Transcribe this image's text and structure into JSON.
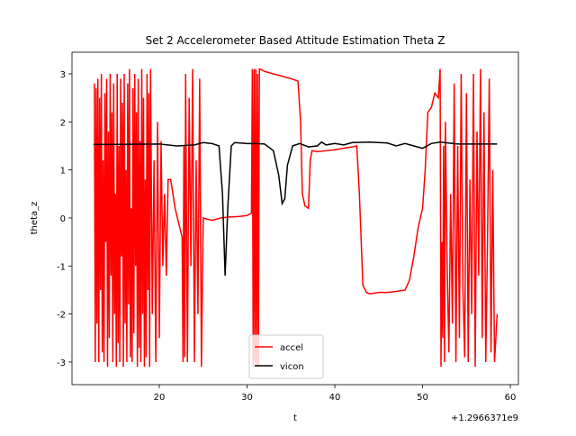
{
  "chart_data": {
    "type": "line",
    "title": "Set 2 Accelerometer Based Attitude Estimation Theta Z",
    "xlabel": "t",
    "ylabel": "theta_z",
    "x_offset_label": "+1.2966371e9",
    "xlim": [
      10.05,
      60.92
    ],
    "ylim": [
      -3.47,
      3.45
    ],
    "xticks": [
      20,
      30,
      40,
      50,
      60
    ],
    "yticks": [
      -3,
      -2,
      -1,
      0,
      1,
      2,
      3
    ],
    "legend": "lower center",
    "series": [
      {
        "name": "accel",
        "color": "#ff0000",
        "x": [
          12.6,
          12.7,
          12.8,
          12.9,
          13.0,
          13.1,
          13.2,
          13.3,
          13.4,
          13.5,
          13.6,
          13.7,
          13.8,
          13.9,
          14.0,
          14.1,
          14.2,
          14.3,
          14.4,
          14.5,
          14.6,
          14.7,
          14.8,
          14.9,
          15.0,
          15.1,
          15.2,
          15.3,
          15.4,
          15.5,
          15.6,
          15.7,
          15.8,
          15.9,
          16.0,
          16.1,
          16.2,
          16.3,
          16.4,
          16.5,
          16.6,
          16.7,
          16.8,
          16.9,
          17.0,
          17.1,
          17.2,
          17.3,
          17.4,
          17.5,
          17.6,
          17.7,
          17.8,
          17.9,
          18.0,
          18.1,
          18.2,
          18.3,
          18.4,
          18.5,
          18.6,
          18.7,
          18.8,
          18.9,
          19.0,
          19.2,
          19.4,
          19.6,
          19.8,
          20.0,
          20.2,
          20.4,
          20.6,
          20.8,
          21.0,
          21.3,
          21.8,
          22.2,
          22.6,
          22.7,
          22.8,
          22.9,
          23.0,
          23.2,
          23.4,
          23.6,
          23.8,
          24.0,
          24.2,
          24.4,
          24.6,
          24.8,
          25.0,
          26,
          27,
          28,
          29,
          30,
          30.5,
          30.6,
          30.7,
          30.8,
          30.9,
          31.0,
          31.1,
          31.2,
          31.3,
          31.4,
          31.5,
          32,
          33,
          34,
          35,
          35.8,
          36.1,
          36.3,
          36.6,
          37.0,
          37.2,
          37.4,
          38,
          39,
          40,
          41,
          42,
          42.5,
          42.8,
          43.2,
          43.6,
          44,
          45,
          46,
          47,
          48,
          48.5,
          49,
          49.5,
          50,
          50.3,
          50.6,
          51,
          51.4,
          51.8,
          52.0,
          52.1,
          52.2,
          52.3,
          52.4,
          52.5,
          52.6,
          52.8,
          53.0,
          53.2,
          53.4,
          53.6,
          53.8,
          54.0,
          54.2,
          54.4,
          54.6,
          54.8,
          55.0,
          55.2,
          55.4,
          55.6,
          55.8,
          56.0,
          56.2,
          56.4,
          56.6,
          56.8,
          57.0,
          57.2,
          57.4,
          57.6,
          57.8,
          58.0,
          58.2,
          58.5
        ],
        "values": [
          2.8,
          -3.0,
          2.7,
          -2.2,
          2.9,
          -3.0,
          2.5,
          -1.5,
          3.0,
          -2.8,
          1.2,
          -3.0,
          2.6,
          -0.5,
          2.9,
          -3.1,
          1.8,
          -2.5,
          3.0,
          -1.2,
          2.2,
          -3.0,
          2.8,
          -2.0,
          0.5,
          -3.1,
          3.0,
          -2.6,
          1.5,
          -3.0,
          2.9,
          -0.8,
          2.4,
          -3.1,
          3.0,
          -2.2,
          1.0,
          -3.0,
          2.8,
          -1.8,
          3.1,
          -2.9,
          0.2,
          -3.0,
          2.7,
          -2.4,
          3.0,
          -1.0,
          2.2,
          -3.1,
          2.9,
          -2.7,
          1.6,
          -3.0,
          3.1,
          -2.0,
          2.5,
          -3.1,
          0.8,
          -2.9,
          3.0,
          -1.5,
          2.6,
          -3.1,
          3.1,
          -2.0,
          1.2,
          -3.0,
          2.0,
          -2.5,
          1.6,
          -1.0,
          0.5,
          -1.2,
          0.8,
          0.8,
          0.2,
          -0.1,
          -0.4,
          -3.0,
          1.5,
          -2.9,
          3.0,
          -3.0,
          2.5,
          -1.0,
          3.1,
          -3.0,
          1.2,
          -2.0,
          2.9,
          -3.1,
          0.0,
          -0.05,
          0.0,
          0.02,
          0.03,
          0.05,
          0.1,
          3.1,
          -3.1,
          3.1,
          -3.0,
          3.1,
          -3.1,
          3.0,
          -3.1,
          3.1,
          3.1,
          3.05,
          3.0,
          2.95,
          2.9,
          2.85,
          2.0,
          0.5,
          0.25,
          0.2,
          1.2,
          1.4,
          1.38,
          1.4,
          1.42,
          1.45,
          1.48,
          1.5,
          0.5,
          -1.4,
          -1.55,
          -1.58,
          -1.55,
          -1.55,
          -1.53,
          -1.5,
          -1.3,
          -0.8,
          -0.2,
          0.2,
          1.0,
          2.2,
          2.3,
          2.6,
          2.5,
          3.1,
          -3.1,
          -0.5,
          -2.5,
          1.5,
          -3.0,
          2.0,
          -1.0,
          -2.8,
          0.5,
          -2.2,
          2.8,
          -3.0,
          1.5,
          -2.5,
          3.0,
          -1.5,
          -2.9,
          2.6,
          -3.0,
          0.8,
          -2.0,
          3.0,
          -3.1,
          1.8,
          -1.2,
          3.1,
          -2.5,
          2.2,
          -3.0,
          -0.5,
          2.9,
          -2.8,
          1.0,
          -3.0,
          -2.0
        ]
      },
      {
        "name": "vicon",
        "color": "#000000",
        "x": [
          12.5,
          20,
          22,
          24,
          25,
          26,
          26.8,
          27.2,
          27.5,
          27.8,
          28.2,
          28.6,
          30,
          31,
          32,
          33,
          33.6,
          34,
          34.3,
          34.6,
          35.2,
          36,
          37,
          38,
          38.5,
          39,
          40,
          41,
          42,
          44,
          46,
          47,
          48,
          50,
          51,
          52,
          54,
          56,
          58.5
        ],
        "values": [
          1.53,
          1.54,
          1.5,
          1.52,
          1.57,
          1.55,
          1.5,
          0.5,
          -1.2,
          0.2,
          1.5,
          1.57,
          1.55,
          1.55,
          1.54,
          1.4,
          0.9,
          0.3,
          0.4,
          1.1,
          1.5,
          1.55,
          1.48,
          1.5,
          1.58,
          1.52,
          1.55,
          1.52,
          1.57,
          1.58,
          1.56,
          1.5,
          1.55,
          1.45,
          1.55,
          1.58,
          1.54,
          1.54,
          1.54
        ]
      }
    ]
  }
}
